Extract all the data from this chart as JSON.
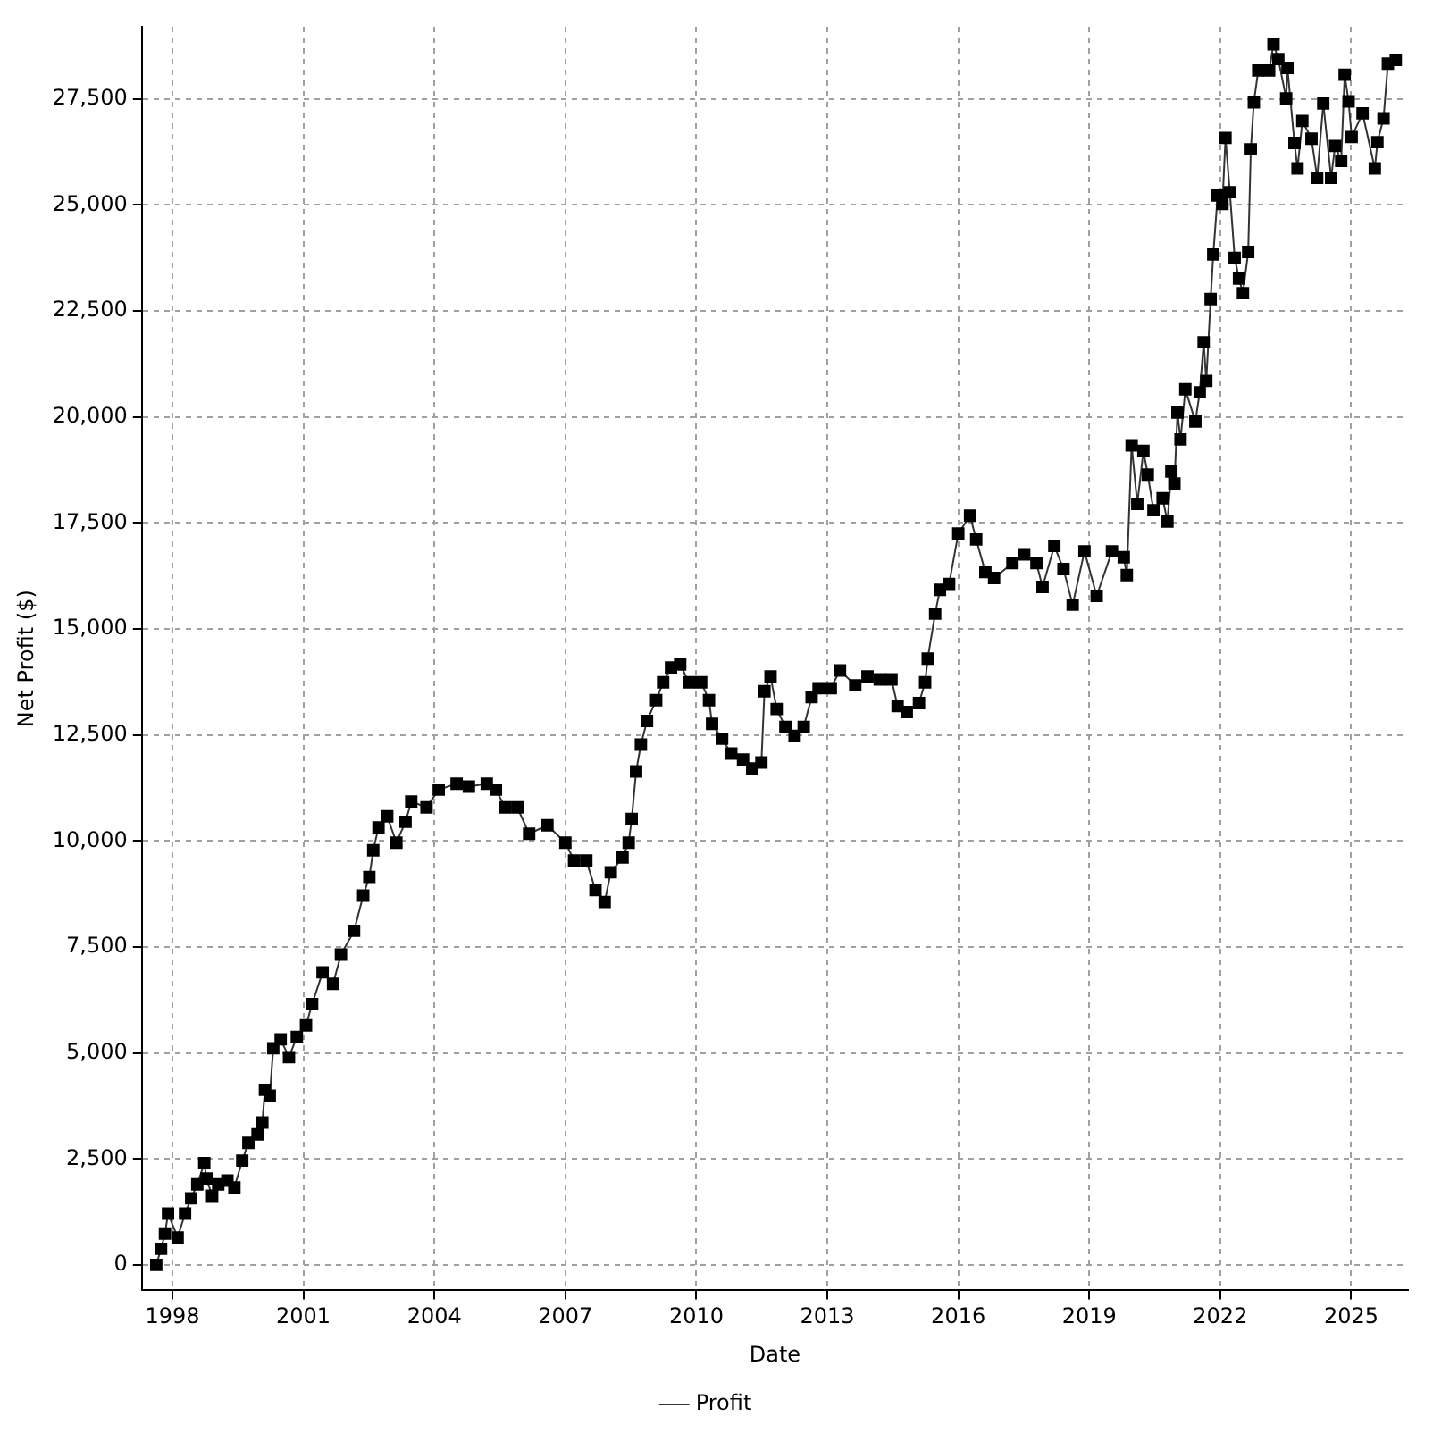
{
  "chart_data": {
    "type": "line",
    "xlabel": "Date",
    "ylabel": "Net Profit ($)",
    "legend": "bottom",
    "grid": true,
    "marker": "square",
    "line_style": "solid",
    "xlim": [
      1997.3,
      2026.3
    ],
    "xticks": [
      1998,
      2001,
      2004,
      2007,
      2010,
      2013,
      2016,
      2019,
      2022,
      2025
    ],
    "ylim": [
      -600,
      29200
    ],
    "yticks": [
      0,
      {
        "value": 2500,
        "label": "2,500"
      },
      {
        "value": 5000,
        "label": "5,000"
      },
      {
        "value": 7500,
        "label": "7,500"
      },
      {
        "value": 10000,
        "label": "10,000"
      },
      {
        "value": 12500,
        "label": "12,500"
      },
      {
        "value": 15000,
        "label": "15,000"
      },
      {
        "value": 17500,
        "label": "17,500"
      },
      {
        "value": 20000,
        "label": "20,000"
      },
      {
        "value": 22500,
        "label": "22,500"
      },
      {
        "value": 25000,
        "label": "25,000"
      },
      {
        "value": 27500,
        "label": "27,500"
      }
    ],
    "series": [
      {
        "name": "Profit",
        "color": "#000000",
        "x": [
          1997.63,
          1997.74,
          1997.83,
          1997.9,
          1998.12,
          1998.29,
          1998.43,
          1998.57,
          1998.73,
          1998.78,
          1998.91,
          1999.05,
          1999.26,
          1999.42,
          1999.6,
          1999.74,
          1999.95,
          2000.06,
          2000.12,
          2000.23,
          2000.31,
          2000.48,
          2000.67,
          2000.85,
          2001.06,
          2001.2,
          2001.44,
          2001.68,
          2001.86,
          2002.16,
          2002.37,
          2002.51,
          2002.6,
          2002.72,
          2002.92,
          2003.13,
          2003.34,
          2003.47,
          2003.82,
          2004.1,
          2004.51,
          2004.79,
          2005.2,
          2005.41,
          2005.62,
          2005.9,
          2006.17,
          2006.59,
          2007.0,
          2007.2,
          2007.48,
          2007.69,
          2007.9,
          2008.04,
          2008.31,
          2008.45,
          2008.52,
          2008.62,
          2008.73,
          2008.87,
          2009.08,
          2009.24,
          2009.42,
          2009.63,
          2009.83,
          2010.11,
          2010.29,
          2010.36,
          2010.59,
          2010.8,
          2011.07,
          2011.28,
          2011.49,
          2011.56,
          2011.7,
          2011.84,
          2012.04,
          2012.25,
          2012.46,
          2012.64,
          2012.8,
          2013.08,
          2013.29,
          2013.64,
          2013.92,
          2014.2,
          2014.47,
          2014.61,
          2014.82,
          2015.1,
          2015.24,
          2015.3,
          2015.47,
          2015.58,
          2015.79,
          2016.0,
          2016.27,
          2016.41,
          2016.62,
          2016.82,
          2017.24,
          2017.51,
          2017.79,
          2017.93,
          2018.2,
          2018.41,
          2018.62,
          2018.89,
          2019.17,
          2019.52,
          2019.79,
          2019.86,
          2019.97,
          2020.1,
          2020.24,
          2020.34,
          2020.47,
          2020.68,
          2020.79,
          2020.88,
          2020.95,
          2021.02,
          2021.09,
          2021.2,
          2021.43,
          2021.53,
          2021.62,
          2021.68,
          2021.78,
          2021.84,
          2021.94,
          2022.05,
          2022.12,
          2022.22,
          2022.33,
          2022.43,
          2022.52,
          2022.64,
          2022.7,
          2022.77,
          2022.87,
          2023.12,
          2023.22,
          2023.33,
          2023.51,
          2023.54,
          2023.7,
          2023.77,
          2023.88,
          2024.09,
          2024.22,
          2024.36,
          2024.54,
          2024.63,
          2024.77,
          2024.85,
          2024.94,
          2025.01,
          2025.26,
          2025.54,
          2025.6,
          2025.74,
          2025.84,
          2026.02
        ],
        "values": [
          0,
          380,
          740,
          1210,
          650,
          1210,
          1570,
          1900,
          2400,
          2040,
          1630,
          1900,
          1990,
          1830,
          2460,
          2880,
          3080,
          3360,
          4130,
          3990,
          5110,
          5320,
          4900,
          5380,
          5650,
          6150,
          6900,
          6630,
          7320,
          7880,
          8710,
          9150,
          9780,
          10320,
          10580,
          9960,
          10450,
          10930,
          10790,
          11210,
          11350,
          11280,
          11350,
          11210,
          10790,
          10790,
          10170,
          10370,
          9960,
          9540,
          9540,
          8840,
          8560,
          9260,
          9610,
          9960,
          10520,
          11640,
          12270,
          12830,
          13320,
          13740,
          14090,
          14160,
          13740,
          13740,
          13320,
          12760,
          12410,
          12060,
          11920,
          11710,
          11850,
          13530,
          13880,
          13110,
          12690,
          12480,
          12690,
          13390,
          13600,
          13600,
          14020,
          13670,
          13880,
          13810,
          13810,
          13180,
          13040,
          13250,
          13740,
          14300,
          15360,
          15920,
          16060,
          17250,
          17670,
          17110,
          16340,
          16200,
          16550,
          16760,
          16550,
          15990,
          16960,
          16410,
          15570,
          16830,
          15780,
          16830,
          16690,
          16270,
          19330,
          17950,
          19200,
          18640,
          17800,
          18080,
          17530,
          18710,
          18430,
          20100,
          19470,
          20650,
          19890,
          20580,
          21760,
          20850,
          22780,
          23830,
          25220,
          25020,
          26580,
          25300,
          23750,
          23260,
          22920,
          23890,
          26310,
          27420,
          28170,
          28170,
          28790,
          28440,
          27510,
          28230,
          26460,
          25860,
          26980,
          26560,
          25640,
          27390,
          25640,
          26390,
          26040,
          28070,
          27440,
          26600,
          27160,
          25860,
          26480,
          27040,
          28330,
          28420
        ]
      }
    ]
  }
}
